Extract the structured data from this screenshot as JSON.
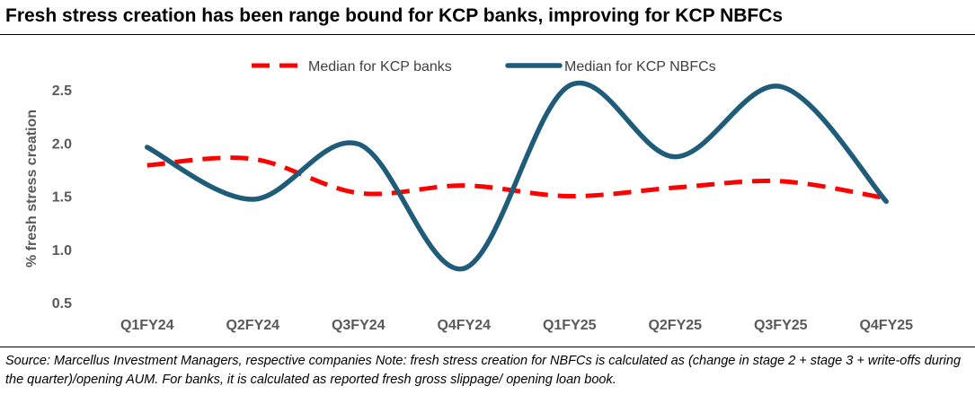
{
  "title": "Fresh stress creation has been range bound for KCP banks, improving for KCP NBFCs",
  "source": "Source: Marcellus Investment Managers, respective companies Note: fresh stress creation for NBFCs is calculated as (change in stage 2 + stage 3 + write-offs during the quarter)/opening AUM. For banks, it is calculated as reported fresh gross slippage/ opening loan book.",
  "chart_data": {
    "type": "line",
    "categories": [
      "Q1FY24",
      "Q2FY24",
      "Q3FY24",
      "Q4FY24",
      "Q1FY25",
      "Q2FY25",
      "Q3FY25",
      "Q4FY25"
    ],
    "ylabel": "% fresh stress creation",
    "xlabel": "",
    "ylim": [
      0.5,
      2.5
    ],
    "yticks": [
      "0.5",
      "1.0",
      "1.5",
      "2.0",
      "2.5"
    ],
    "grid": false,
    "legend_position": "top-center",
    "series": [
      {
        "name": "Median for KCP banks",
        "color": "#ff0000",
        "style": "dashed",
        "values": [
          1.79,
          1.85,
          1.53,
          1.6,
          1.5,
          1.58,
          1.64,
          1.48
        ]
      },
      {
        "name": "Median for KCP NBFCs",
        "color": "#1f5c7a",
        "style": "solid",
        "values": [
          1.96,
          1.47,
          1.99,
          0.82,
          2.54,
          1.87,
          2.53,
          1.45
        ]
      }
    ]
  }
}
